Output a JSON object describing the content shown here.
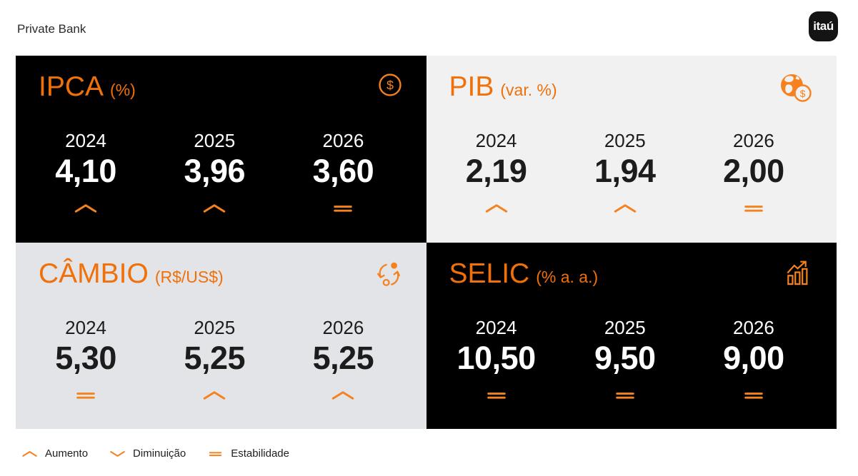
{
  "header": {
    "brand": "Private Bank",
    "logo_text": "itaú"
  },
  "colors": {
    "brand_orange": "#F0700A",
    "indicator_orange": "#F5821F",
    "dark_card_bg": "#000000",
    "pib_card_bg": "#F1F1F2",
    "cambio_card_bg": "#E3E4E8",
    "page_bg": "#FFFFFF"
  },
  "cards": [
    {
      "id": "ipca",
      "title": "IPCA",
      "unit": "(%)",
      "icon": "dollar-circle-icon",
      "columns": [
        {
          "year": "2024",
          "value": "4,10",
          "indicator": "up"
        },
        {
          "year": "2025",
          "value": "3,96",
          "indicator": "up"
        },
        {
          "year": "2026",
          "value": "3,60",
          "indicator": "stable"
        }
      ]
    },
    {
      "id": "pib",
      "title": "PIB",
      "unit": "(var. %)",
      "icon": "globe-dollar-icon",
      "columns": [
        {
          "year": "2024",
          "value": "2,19",
          "indicator": "up"
        },
        {
          "year": "2025",
          "value": "1,94",
          "indicator": "up"
        },
        {
          "year": "2026",
          "value": "2,00",
          "indicator": "stable"
        }
      ]
    },
    {
      "id": "cambio",
      "title": "CÂMBIO",
      "unit": "(R$/US$)",
      "icon": "exchange-icon",
      "columns": [
        {
          "year": "2024",
          "value": "5,30",
          "indicator": "stable"
        },
        {
          "year": "2025",
          "value": "5,25",
          "indicator": "up"
        },
        {
          "year": "2026",
          "value": "5,25",
          "indicator": "up"
        }
      ]
    },
    {
      "id": "selic",
      "title": "SELIC",
      "unit": "(% a. a.)",
      "icon": "chart-up-icon",
      "columns": [
        {
          "year": "2024",
          "value": "10,50",
          "indicator": "stable"
        },
        {
          "year": "2025",
          "value": "9,50",
          "indicator": "stable"
        },
        {
          "year": "2026",
          "value": "9,00",
          "indicator": "stable"
        }
      ]
    }
  ],
  "legend": [
    {
      "indicator": "up",
      "label": "Aumento"
    },
    {
      "indicator": "down",
      "label": "Diminuição"
    },
    {
      "indicator": "stable",
      "label": "Estabilidade"
    }
  ]
}
